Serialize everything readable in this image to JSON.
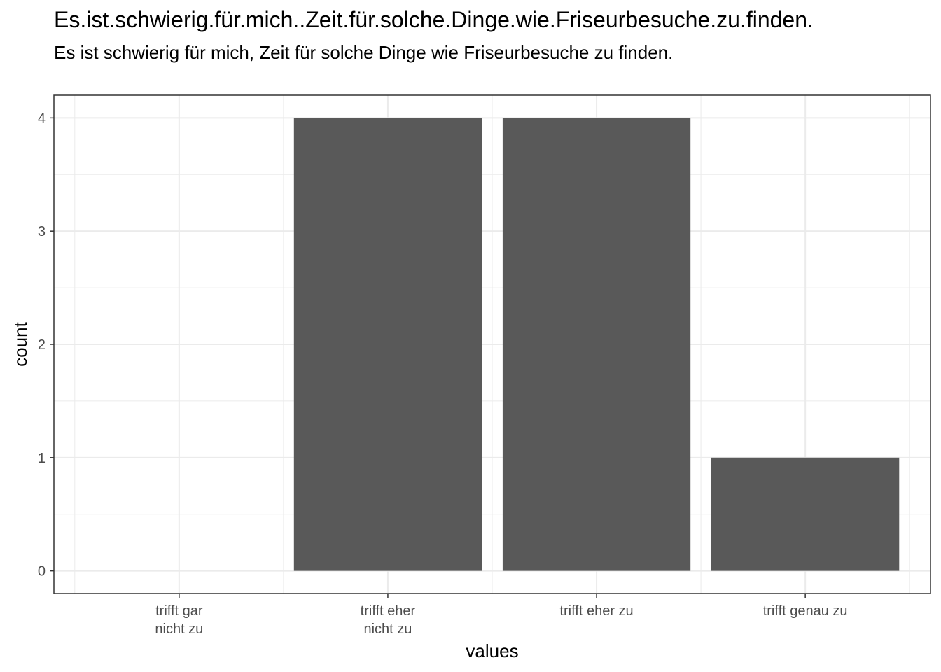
{
  "chart_data": {
    "type": "bar",
    "title": "Es.ist.schwierig.für.mich..Zeit.für.solche.Dinge.wie.Friseurbesuche.zu.finden.",
    "subtitle": "Es ist schwierig für mich, Zeit für solche Dinge wie Friseurbesuche zu finden.",
    "xlabel": "values",
    "ylabel": "count",
    "categories": [
      [
        "trifft gar",
        "nicht zu"
      ],
      [
        "trifft eher",
        "nicht zu"
      ],
      [
        "trifft eher zu"
      ],
      [
        "trifft genau zu"
      ]
    ],
    "values": [
      0,
      4,
      4,
      1
    ],
    "ylim": [
      -0.2,
      4.2
    ],
    "yticks": [
      0,
      1,
      2,
      3,
      4
    ],
    "grid": true,
    "bar_color": "#595959",
    "grid_color": "#ebebeb",
    "panel_border_color": "#333333"
  }
}
